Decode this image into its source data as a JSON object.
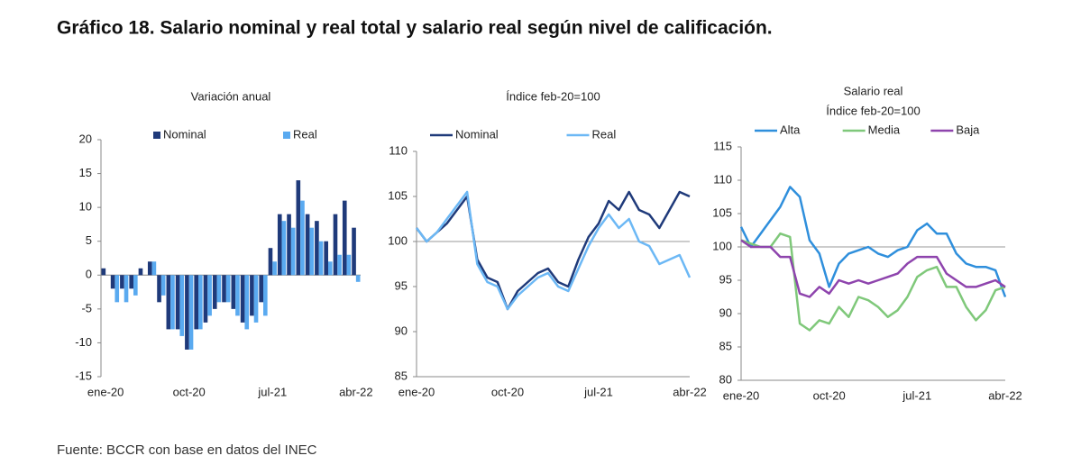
{
  "title": "Gráfico 18. Salario nominal y real total y salario real según nivel de calificación.",
  "source": "Fuente: BCCR con base en datos del INEC",
  "chart_data": [
    {
      "type": "bar",
      "title": "Variación anual",
      "categories": [
        "ene-20",
        null,
        null,
        null,
        null,
        null,
        null,
        null,
        null,
        "oct-20",
        null,
        null,
        null,
        null,
        null,
        null,
        null,
        null,
        "jul-21",
        null,
        null,
        null,
        null,
        null,
        null,
        null,
        null,
        "abr-22"
      ],
      "series": [
        {
          "name": "Nominal",
          "color": "#1f3a7a",
          "values": [
            1,
            -2,
            -2,
            -2,
            1,
            2,
            -4,
            -8,
            -8,
            -11,
            -8,
            -7,
            -5,
            -4,
            -5,
            -7,
            -6,
            -4,
            4,
            9,
            9,
            14,
            9,
            8,
            5,
            9,
            11,
            7
          ]
        },
        {
          "name": "Real",
          "color": "#5aaaf0",
          "values": [
            0,
            -4,
            -4,
            -3,
            0,
            2,
            -3,
            -8,
            -9,
            -11,
            -8,
            -6,
            -4,
            -4,
            -6,
            -8,
            -7,
            -6,
            2,
            8,
            7,
            11,
            7,
            5,
            2,
            3,
            3,
            -1
          ]
        }
      ],
      "ylim": [
        -15,
        20
      ],
      "yticks": [
        -15,
        -10,
        -5,
        0,
        5,
        10,
        15,
        20
      ],
      "legend": "top"
    },
    {
      "type": "line",
      "title": "Índice feb-20=100",
      "categories": [
        "ene-20",
        null,
        null,
        null,
        null,
        null,
        null,
        null,
        null,
        "oct-20",
        null,
        null,
        null,
        null,
        null,
        null,
        null,
        null,
        "jul-21",
        null,
        null,
        null,
        null,
        null,
        null,
        null,
        null,
        "abr-22"
      ],
      "series": [
        {
          "name": "Nominal",
          "color": "#1f3a7a",
          "values": [
            101.5,
            100,
            101,
            102,
            103.5,
            105,
            98,
            96,
            95.5,
            92.5,
            94.5,
            95.5,
            96.5,
            97,
            95.5,
            95,
            98,
            100.5,
            102,
            104.5,
            103.5,
            105.5,
            103.5,
            103,
            101.5,
            103.5,
            105.5,
            105
          ]
        },
        {
          "name": "Real",
          "color": "#6cb8f5",
          "values": [
            101.5,
            100,
            101,
            102.5,
            104,
            105.5,
            97.5,
            95.5,
            95,
            92.5,
            94,
            95,
            96,
            96.5,
            95,
            94.5,
            97,
            99.5,
            101.5,
            103,
            101.5,
            102.5,
            100,
            99.5,
            97.5,
            98,
            98.5,
            96
          ]
        }
      ],
      "ylim": [
        85,
        110
      ],
      "yticks": [
        85,
        90,
        95,
        100,
        105,
        110
      ],
      "hline": 100,
      "legend": "top"
    },
    {
      "type": "line",
      "title": "Salario real",
      "subtitle": "Índice feb-20=100",
      "categories": [
        "ene-20",
        null,
        null,
        null,
        null,
        null,
        null,
        null,
        null,
        "oct-20",
        null,
        null,
        null,
        null,
        null,
        null,
        null,
        null,
        "jul-21",
        null,
        null,
        null,
        null,
        null,
        null,
        null,
        null,
        "abr-22"
      ],
      "series": [
        {
          "name": "Alta",
          "color": "#2f8fdc",
          "values": [
            103,
            100,
            102,
            104,
            106,
            109,
            107.5,
            101,
            99,
            94,
            97.5,
            99,
            99.5,
            100,
            99,
            98.5,
            99.5,
            100,
            102.5,
            103.5,
            102,
            102,
            99,
            97.5,
            97,
            97,
            96.5,
            92.5
          ]
        },
        {
          "name": "Media",
          "color": "#7fc87a",
          "values": [
            101,
            100.5,
            100,
            100,
            102,
            101.5,
            88.5,
            87.5,
            89,
            88.5,
            91,
            89.5,
            92.5,
            92,
            91,
            89.5,
            90.5,
            92.5,
            95.5,
            96.5,
            97,
            94,
            94,
            91,
            89,
            90.5,
            93.5,
            94
          ]
        },
        {
          "name": "Baja",
          "color": "#8e44ad",
          "values": [
            101,
            100,
            100,
            100,
            98.5,
            98.5,
            93,
            92.5,
            94,
            93,
            95,
            94.5,
            95,
            94.5,
            95,
            95.5,
            96,
            97.5,
            98.5,
            98.5,
            98.5,
            96,
            95,
            94,
            94,
            94.5,
            95,
            94
          ]
        }
      ],
      "ylim": [
        80,
        115
      ],
      "yticks": [
        80,
        85,
        90,
        95,
        100,
        105,
        110,
        115
      ],
      "hline": 100,
      "legend": "top"
    }
  ]
}
